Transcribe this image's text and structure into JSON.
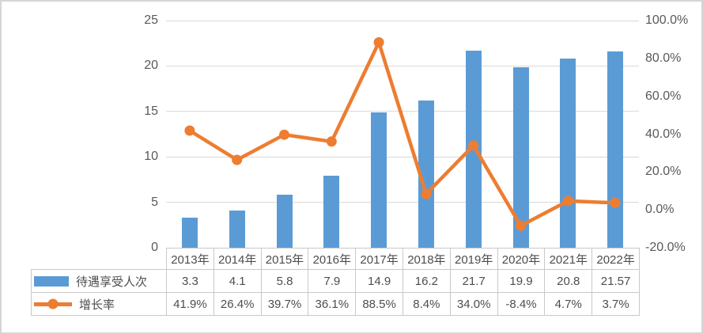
{
  "chart_data": {
    "type": "combo",
    "categories": [
      "2013年",
      "2014年",
      "2015年",
      "2016年",
      "2017年",
      "2018年",
      "2019年",
      "2020年",
      "2021年",
      "2022年"
    ],
    "series": [
      {
        "name": "待遇享受人次",
        "type": "bar",
        "axis": "left",
        "values": [
          3.3,
          4.1,
          5.8,
          7.9,
          14.9,
          16.2,
          21.7,
          19.9,
          20.8,
          21.57
        ],
        "labels": [
          "3.3",
          "4.1",
          "5.8",
          "7.9",
          "14.9",
          "16.2",
          "21.7",
          "19.9",
          "20.8",
          "21.57"
        ],
        "color": "#5B9BD5"
      },
      {
        "name": "增长率",
        "type": "line",
        "axis": "right",
        "values": [
          41.9,
          26.4,
          39.7,
          36.1,
          88.5,
          8.4,
          34.0,
          -8.4,
          4.7,
          3.7
        ],
        "labels": [
          "41.9%",
          "26.4%",
          "39.7%",
          "36.1%",
          "88.5%",
          "8.4%",
          "34.0%",
          "-8.4%",
          "4.7%",
          "3.7%"
        ],
        "color": "#ED7D31"
      }
    ],
    "left_axis": {
      "min": 0,
      "max": 25,
      "ticks": [
        0,
        5,
        10,
        15,
        20,
        25
      ],
      "labels": [
        "0",
        "5",
        "10",
        "15",
        "20",
        "25"
      ]
    },
    "right_axis": {
      "min": -20,
      "max": 100,
      "ticks": [
        -20,
        0,
        20,
        40,
        60,
        80,
        100
      ],
      "labels": [
        "-20.0%",
        "0.0%",
        "20.0%",
        "40.0%",
        "60.0%",
        "80.0%",
        "100.0%"
      ]
    },
    "grid": true,
    "legend_position": "data-table-left",
    "title": ""
  },
  "colors": {
    "bar": "#5B9BD5",
    "line": "#ED7D31",
    "gridline": "#D9D9D9",
    "axis_text": "#595959",
    "table_text": "#4D4D4D",
    "table_border": "#C9C9C9",
    "frame_border": "#D5D5D5",
    "background": "#FFFFFF"
  }
}
